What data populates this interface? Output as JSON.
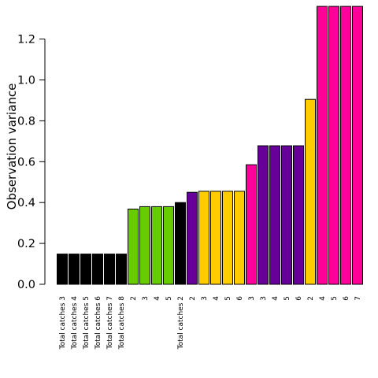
{
  "chart_data": {
    "type": "bar",
    "title": "",
    "xlabel": "",
    "ylabel": "Observation variance",
    "ylim": [
      0,
      1.36
    ],
    "yticks": [
      "0.0",
      "0.2",
      "0.4",
      "0.6",
      "0.8",
      "1.0",
      "1.2"
    ],
    "grid": false,
    "legend": "none",
    "colors": {
      "black": "#000000",
      "green": "#66cc00",
      "purple": "#660099",
      "yellow": "#ffcc00",
      "magenta": "#ff0099"
    },
    "bars": [
      {
        "label": "Total catches 3",
        "value": 0.148,
        "color": "black"
      },
      {
        "label": "Total catches 4",
        "value": 0.148,
        "color": "black"
      },
      {
        "label": "Total catches 5",
        "value": 0.148,
        "color": "black"
      },
      {
        "label": "Total catches 6",
        "value": 0.148,
        "color": "black"
      },
      {
        "label": "Total catches 7",
        "value": 0.148,
        "color": "black"
      },
      {
        "label": "Total catches 8",
        "value": 0.148,
        "color": "black"
      },
      {
        "label": "2",
        "value": 0.368,
        "color": "green"
      },
      {
        "label": "3",
        "value": 0.38,
        "color": "green"
      },
      {
        "label": "4",
        "value": 0.38,
        "color": "green"
      },
      {
        "label": "5",
        "value": 0.38,
        "color": "green"
      },
      {
        "label": "Total catches 2",
        "value": 0.4,
        "color": "black"
      },
      {
        "label": "2",
        "value": 0.45,
        "color": "purple"
      },
      {
        "label": "3",
        "value": 0.455,
        "color": "yellow"
      },
      {
        "label": "4",
        "value": 0.455,
        "color": "yellow"
      },
      {
        "label": "5",
        "value": 0.455,
        "color": "yellow"
      },
      {
        "label": "6",
        "value": 0.455,
        "color": "yellow"
      },
      {
        "label": "3",
        "value": 0.585,
        "color": "magenta"
      },
      {
        "label": "3",
        "value": 0.678,
        "color": "purple"
      },
      {
        "label": "4",
        "value": 0.678,
        "color": "purple"
      },
      {
        "label": "5",
        "value": 0.678,
        "color": "purple"
      },
      {
        "label": "6",
        "value": 0.678,
        "color": "purple"
      },
      {
        "label": "2",
        "value": 0.905,
        "color": "yellow"
      },
      {
        "label": "4",
        "value": 1.36,
        "color": "magenta"
      },
      {
        "label": "5",
        "value": 1.36,
        "color": "magenta"
      },
      {
        "label": "6",
        "value": 1.36,
        "color": "magenta"
      },
      {
        "label": "7",
        "value": 1.36,
        "color": "magenta"
      }
    ]
  }
}
